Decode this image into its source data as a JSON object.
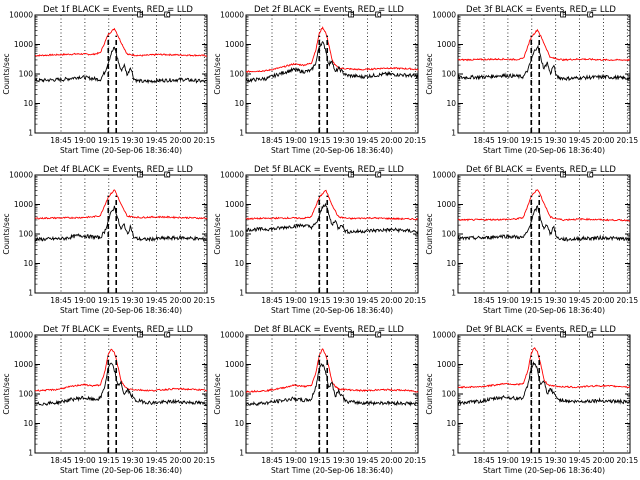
{
  "chart_data": [
    {
      "type": "line",
      "title": "Det 1f BLACK = Events, RED = LLD",
      "ylabel": "Counts/sec",
      "xlabel": "Start Time (20-Sep-06 18:36:40)",
      "yscale": "log",
      "ylim": [
        1,
        10000
      ],
      "yticks": [
        "1",
        "10",
        "100",
        "1000",
        "10000"
      ],
      "xticks": [
        "18:45",
        "19:00",
        "19:15",
        "19:30",
        "19:45",
        "20:00",
        "20:15"
      ],
      "xlim_minutes": [
        -8,
        100
      ],
      "markers": {
        "P": 58,
        "C": 75
      },
      "series": [
        {
          "color": "#ff0000",
          "base": 420,
          "x": [
            -8,
            20,
            28,
            33,
            38,
            42,
            46,
            50,
            54,
            58,
            62,
            70,
            85,
            100
          ],
          "y": [
            420,
            480,
            460,
            520,
            2200,
            3500,
            1200,
            460,
            440,
            420,
            430,
            460,
            440,
            420
          ]
        },
        {
          "color": "#000000",
          "base": 70,
          "x": [
            -8,
            10,
            20,
            28,
            33,
            36,
            38,
            40,
            42,
            44,
            46,
            48,
            50,
            52,
            54,
            56,
            60,
            70,
            85,
            100
          ],
          "y": [
            60,
            65,
            80,
            70,
            65,
            120,
            250,
            520,
            800,
            300,
            130,
            200,
            90,
            180,
            70,
            60,
            55,
            60,
            65,
            55
          ]
        }
      ]
    },
    {
      "type": "line",
      "title": "Det 2f BLACK = Events, RED = LLD",
      "ylabel": "Counts/sec",
      "xlabel": "Start Time (20-Sep-06 18:36:40)",
      "yscale": "log",
      "ylim": [
        1,
        10000
      ],
      "yticks": [
        "1",
        "10",
        "100",
        "1000",
        "10000"
      ],
      "xticks": [
        "18:45",
        "19:00",
        "19:15",
        "19:30",
        "19:45",
        "20:00",
        "20:15"
      ],
      "xlim_minutes": [
        -8,
        100
      ],
      "markers": {
        "P": 58,
        "C": 75
      },
      "series": [
        {
          "color": "#ff0000",
          "base": 130,
          "x": [
            -8,
            5,
            15,
            22,
            28,
            33,
            36,
            38,
            40,
            42,
            44,
            46,
            48,
            50,
            55,
            65,
            80,
            95,
            100
          ],
          "y": [
            120,
            130,
            170,
            220,
            200,
            230,
            700,
            2400,
            3800,
            2600,
            1000,
            300,
            200,
            160,
            150,
            140,
            160,
            150,
            140
          ]
        },
        {
          "color": "#000000",
          "base": 70,
          "x": [
            -8,
            5,
            15,
            22,
            28,
            33,
            36,
            38,
            40,
            42,
            44,
            46,
            48,
            50,
            55,
            65,
            80,
            95,
            100
          ],
          "y": [
            60,
            70,
            110,
            140,
            120,
            130,
            250,
            900,
            1200,
            700,
            200,
            300,
            110,
            160,
            90,
            80,
            100,
            90,
            80
          ]
        }
      ]
    },
    {
      "type": "line",
      "title": "Det 3f BLACK = Events, RED = LLD",
      "ylabel": "Counts/sec",
      "xlabel": "Start Time (20-Sep-06 18:36:40)",
      "yscale": "log",
      "ylim": [
        1,
        10000
      ],
      "yticks": [
        "1",
        "10",
        "100",
        "1000",
        "10000"
      ],
      "xticks": [
        "18:45",
        "19:00",
        "19:15",
        "19:30",
        "19:45",
        "20:00",
        "20:15"
      ],
      "xlim_minutes": [
        -8,
        100
      ],
      "markers": {
        "P": 58,
        "C": 75
      },
      "series": [
        {
          "color": "#ff0000",
          "base": 300,
          "x": [
            -8,
            20,
            28,
            33,
            38,
            42,
            46,
            50,
            54,
            58,
            62,
            70,
            85,
            100
          ],
          "y": [
            300,
            320,
            310,
            330,
            1800,
            3200,
            1100,
            360,
            330,
            300,
            310,
            320,
            300,
            300
          ]
        },
        {
          "color": "#000000",
          "base": 80,
          "x": [
            -8,
            10,
            20,
            28,
            33,
            36,
            38,
            40,
            42,
            44,
            46,
            48,
            50,
            52,
            54,
            56,
            60,
            70,
            85,
            100
          ],
          "y": [
            75,
            80,
            90,
            85,
            80,
            140,
            300,
            600,
            900,
            350,
            150,
            250,
            100,
            200,
            80,
            75,
            70,
            75,
            80,
            70
          ]
        }
      ]
    },
    {
      "type": "line",
      "title": "Det 4f BLACK = Events, RED = LLD",
      "ylabel": "Counts/sec",
      "xlabel": "Start Time (20-Sep-06 18:36:40)",
      "yscale": "log",
      "ylim": [
        1,
        10000
      ],
      "yticks": [
        "1",
        "10",
        "100",
        "1000",
        "10000"
      ],
      "xticks": [
        "18:45",
        "19:00",
        "19:15",
        "19:30",
        "19:45",
        "20:00",
        "20:15"
      ],
      "xlim_minutes": [
        -8,
        100
      ],
      "markers": {
        "P": 58,
        "C": 75
      },
      "series": [
        {
          "color": "#ff0000",
          "base": 350,
          "x": [
            -8,
            20,
            28,
            33,
            38,
            42,
            46,
            50,
            54,
            58,
            62,
            70,
            85,
            100
          ],
          "y": [
            340,
            360,
            380,
            420,
            1800,
            3200,
            1000,
            400,
            380,
            360,
            370,
            380,
            360,
            340
          ]
        },
        {
          "color": "#000000",
          "base": 75,
          "x": [
            -8,
            10,
            20,
            28,
            33,
            36,
            38,
            40,
            42,
            44,
            46,
            48,
            50,
            52,
            54,
            56,
            60,
            70,
            85,
            100
          ],
          "y": [
            65,
            70,
            90,
            80,
            75,
            130,
            280,
            560,
            850,
            320,
            140,
            220,
            95,
            190,
            75,
            70,
            65,
            70,
            75,
            65
          ]
        }
      ]
    },
    {
      "type": "line",
      "title": "Det 5f BLACK = Events, RED = LLD",
      "ylabel": "Counts/sec",
      "xlabel": "Start Time (20-Sep-06 18:36:40)",
      "yscale": "log",
      "ylim": [
        1,
        10000
      ],
      "yticks": [
        "1",
        "10",
        "100",
        "1000",
        "10000"
      ],
      "xticks": [
        "18:45",
        "19:00",
        "19:15",
        "19:30",
        "19:45",
        "20:00",
        "20:15"
      ],
      "xlim_minutes": [
        -8,
        100
      ],
      "markers": {
        "P": 58,
        "C": 75
      },
      "series": [
        {
          "color": "#ff0000",
          "base": 330,
          "x": [
            -8,
            20,
            28,
            33,
            38,
            42,
            46,
            50,
            54,
            58,
            62,
            70,
            85,
            100
          ],
          "y": [
            330,
            350,
            340,
            380,
            1700,
            3100,
            1000,
            380,
            350,
            330,
            340,
            350,
            330,
            320
          ]
        },
        {
          "color": "#000000",
          "base": 150,
          "x": [
            -8,
            10,
            20,
            28,
            33,
            36,
            38,
            40,
            42,
            44,
            46,
            48,
            50,
            52,
            54,
            56,
            60,
            70,
            85,
            100
          ],
          "y": [
            140,
            150,
            180,
            200,
            170,
            220,
            400,
            800,
            1100,
            450,
            200,
            300,
            150,
            230,
            130,
            120,
            120,
            130,
            140,
            120
          ]
        }
      ]
    },
    {
      "type": "line",
      "title": "Det 6f BLACK = Events, RED = LLD",
      "ylabel": "Counts/sec",
      "xlabel": "Start Time (20-Sep-06 18:36:40)",
      "yscale": "log",
      "ylim": [
        1,
        10000
      ],
      "yticks": [
        "1",
        "10",
        "100",
        "1000",
        "10000"
      ],
      "xticks": [
        "18:45",
        "19:00",
        "19:15",
        "19:30",
        "19:45",
        "20:00",
        "20:15"
      ],
      "xlim_minutes": [
        -8,
        100
      ],
      "markers": {
        "P": 58,
        "C": 75
      },
      "series": [
        {
          "color": "#ff0000",
          "base": 300,
          "x": [
            -8,
            20,
            28,
            33,
            38,
            42,
            46,
            50,
            54,
            58,
            62,
            70,
            85,
            100
          ],
          "y": [
            300,
            310,
            320,
            360,
            1900,
            3400,
            1100,
            370,
            330,
            300,
            310,
            320,
            300,
            290
          ]
        },
        {
          "color": "#000000",
          "base": 75,
          "x": [
            -8,
            10,
            20,
            28,
            33,
            36,
            38,
            40,
            42,
            44,
            46,
            48,
            50,
            52,
            54,
            56,
            60,
            70,
            85,
            100
          ],
          "y": [
            70,
            75,
            85,
            80,
            75,
            130,
            280,
            560,
            850,
            320,
            140,
            220,
            95,
            190,
            75,
            70,
            65,
            70,
            75,
            65
          ]
        }
      ]
    },
    {
      "type": "line",
      "title": "Det 7f BLACK = Events, RED = LLD",
      "ylabel": "Counts/sec",
      "xlabel": "Start Time (20-Sep-06 18:36:40)",
      "yscale": "log",
      "ylim": [
        1,
        10000
      ],
      "yticks": [
        "1",
        "10",
        "100",
        "1000",
        "10000"
      ],
      "xticks": [
        "18:45",
        "19:00",
        "19:15",
        "19:30",
        "19:45",
        "20:00",
        "20:15"
      ],
      "xlim_minutes": [
        -8,
        100
      ],
      "markers": {
        "P": 58,
        "C": 75
      },
      "series": [
        {
          "color": "#ff0000",
          "base": 150,
          "x": [
            -8,
            5,
            15,
            22,
            28,
            33,
            36,
            38,
            40,
            42,
            44,
            46,
            48,
            50,
            55,
            65,
            80,
            95,
            100
          ],
          "y": [
            130,
            140,
            180,
            210,
            190,
            200,
            600,
            2200,
            3600,
            2400,
            900,
            280,
            190,
            150,
            140,
            130,
            150,
            140,
            130
          ]
        },
        {
          "color": "#000000",
          "base": 55,
          "x": [
            -8,
            5,
            15,
            22,
            28,
            33,
            36,
            38,
            40,
            42,
            44,
            46,
            48,
            50,
            55,
            65,
            80,
            95,
            100
          ],
          "y": [
            45,
            50,
            65,
            75,
            65,
            70,
            200,
            800,
            1100,
            600,
            180,
            260,
            90,
            140,
            60,
            50,
            55,
            50,
            45
          ]
        }
      ]
    },
    {
      "type": "line",
      "title": "Det 8f BLACK = Events, RED = LLD",
      "ylabel": "Counts/sec",
      "xlabel": "Start Time (20-Sep-06 18:36:40)",
      "yscale": "log",
      "ylim": [
        1,
        10000
      ],
      "yticks": [
        "1",
        "10",
        "100",
        "1000",
        "10000"
      ],
      "xticks": [
        "18:45",
        "19:00",
        "19:15",
        "19:30",
        "19:45",
        "20:00",
        "20:15"
      ],
      "xlim_minutes": [
        -8,
        100
      ],
      "markers": {
        "P": 58,
        "C": 75
      },
      "series": [
        {
          "color": "#ff0000",
          "base": 140,
          "x": [
            -8,
            5,
            15,
            22,
            28,
            33,
            36,
            38,
            40,
            42,
            44,
            46,
            48,
            50,
            55,
            65,
            80,
            95,
            100
          ],
          "y": [
            120,
            130,
            160,
            200,
            180,
            190,
            550,
            2000,
            3400,
            2200,
            850,
            260,
            180,
            150,
            140,
            130,
            140,
            130,
            120
          ]
        },
        {
          "color": "#000000",
          "base": 55,
          "x": [
            -8,
            5,
            15,
            22,
            28,
            33,
            36,
            38,
            40,
            42,
            44,
            46,
            48,
            50,
            55,
            65,
            80,
            95,
            100
          ],
          "y": [
            45,
            50,
            60,
            70,
            60,
            65,
            190,
            750,
            1050,
            580,
            170,
            250,
            85,
            130,
            55,
            50,
            50,
            48,
            45
          ]
        }
      ]
    },
    {
      "type": "line",
      "title": "Det 9f BLACK = Events, RED = LLD",
      "ylabel": "Counts/sec",
      "xlabel": "Start Time (20-Sep-06 18:36:40)",
      "yscale": "log",
      "ylim": [
        1,
        10000
      ],
      "yticks": [
        "1",
        "10",
        "100",
        "1000",
        "10000"
      ],
      "xticks": [
        "18:45",
        "19:00",
        "19:15",
        "19:30",
        "19:45",
        "20:00",
        "20:15"
      ],
      "xlim_minutes": [
        -8,
        100
      ],
      "markers": {
        "P": 58,
        "C": 75
      },
      "series": [
        {
          "color": "#ff0000",
          "base": 180,
          "x": [
            -8,
            5,
            15,
            22,
            28,
            33,
            36,
            38,
            40,
            42,
            44,
            46,
            48,
            50,
            55,
            65,
            80,
            95,
            100
          ],
          "y": [
            170,
            175,
            200,
            230,
            210,
            220,
            650,
            2400,
            3800,
            2600,
            1000,
            300,
            220,
            190,
            180,
            170,
            190,
            180,
            170
          ]
        },
        {
          "color": "#000000",
          "base": 60,
          "x": [
            -8,
            5,
            15,
            22,
            28,
            33,
            36,
            38,
            40,
            42,
            44,
            46,
            48,
            50,
            55,
            65,
            80,
            95,
            100
          ],
          "y": [
            50,
            55,
            70,
            80,
            70,
            75,
            210,
            850,
            1150,
            620,
            190,
            270,
            95,
            150,
            65,
            55,
            60,
            55,
            50
          ]
        }
      ]
    }
  ]
}
